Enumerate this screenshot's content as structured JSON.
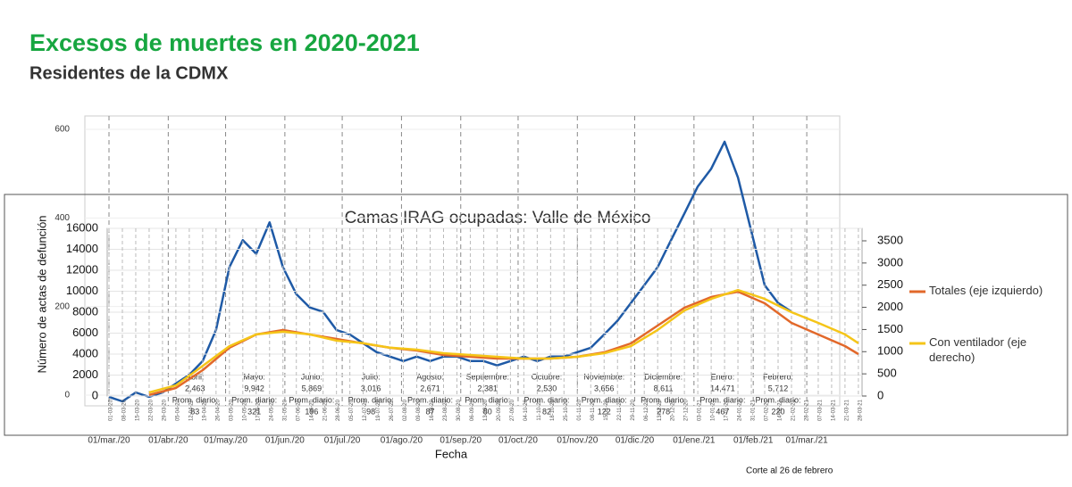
{
  "chart_data": [
    {
      "type": "line",
      "title": "Excesos de muertes en 2020-2021",
      "subtitle": "Residentes de la CDMX",
      "ylabel": "Número de actas de defunción",
      "xlabel": "Fecha",
      "footnote": "Corte al 26 de febrero",
      "ylim": [
        0,
        600
      ],
      "yticks": [
        0,
        200,
        400,
        600
      ],
      "grid": true,
      "xticks": [
        {
          "value": "01-03-20",
          "label": "01/mar./20"
        },
        {
          "value": "01-04-20",
          "label": "01/abr./20"
        },
        {
          "value": "01-05-20",
          "label": "01/may./20"
        },
        {
          "value": "01-06-20",
          "label": "01/jun./20"
        },
        {
          "value": "01-07-20",
          "label": "01/jul./20"
        },
        {
          "value": "01-08-20",
          "label": "01/ago./20"
        },
        {
          "value": "01-09-20",
          "label": "01/sep./20"
        },
        {
          "value": "01-10-20",
          "label": "01/oct./20"
        },
        {
          "value": "01-11-20",
          "label": "01/nov./20"
        },
        {
          "value": "01-12-20",
          "label": "01/dic./20"
        },
        {
          "value": "01-01-21",
          "label": "01/ene./21"
        },
        {
          "value": "01-02-21",
          "label": "01/feb./21"
        },
        {
          "value": "01-03-21",
          "label": "01/mar./21"
        }
      ],
      "annotations": [
        {
          "month": "Abril:",
          "total": "2,463",
          "avg_label": "Prom. diario:",
          "avg": "83",
          "x": "15-04-20"
        },
        {
          "month": "Mayo:",
          "total": "9,942",
          "avg_label": "Prom. diario:",
          "avg": "321",
          "x": "16-05-20"
        },
        {
          "month": "Junio:",
          "total": "5,869",
          "avg_label": "Prom. diario:",
          "avg": "196",
          "x": "15-06-20"
        },
        {
          "month": "Julio:",
          "total": "3,016",
          "avg_label": "Prom. diario:",
          "avg": "98",
          "x": "16-07-20"
        },
        {
          "month": "Agosto:",
          "total": "2,671",
          "avg_label": "Prom. diario:",
          "avg": "87",
          "x": "16-08-20"
        },
        {
          "month": "Septiembre:",
          "total": "2,381",
          "avg_label": "Prom. diario:",
          "avg": "80",
          "x": "15-09-20"
        },
        {
          "month": "Octubre:",
          "total": "2,530",
          "avg_label": "Prom. diario:",
          "avg": "82",
          "x": "16-10-20"
        },
        {
          "month": "Noviembre:",
          "total": "3,656",
          "avg_label": "Prom. diario:",
          "avg": "122",
          "x": "15-11-20"
        },
        {
          "month": "Diciembre:",
          "total": "8,611",
          "avg_label": "Prom. diario:",
          "avg": "278",
          "x": "16-12-20"
        },
        {
          "month": "Enero:",
          "total": "14,471",
          "avg_label": "Prom. diario:",
          "avg": "467",
          "x": "16-01-21"
        },
        {
          "month": "Febrero:",
          "total": "5,712",
          "avg_label": "Prom. diario:",
          "avg": "220",
          "x": "14-02-21"
        }
      ],
      "series": [
        {
          "color": "#1f5aa6",
          "x": [
            "01-03-20",
            "08-03-20",
            "15-03-20",
            "22-03-20",
            "29-03-20",
            "05-04-20",
            "12-04-20",
            "19-04-20",
            "26-04-20",
            "03-05-20",
            "10-05-20",
            "17-05-20",
            "24-05-20",
            "31-05-20",
            "07-06-20",
            "14-06-20",
            "21-06-20",
            "28-06-20",
            "05-07-20",
            "12-07-20",
            "19-07-20",
            "26-07-20",
            "02-08-20",
            "09-08-20",
            "16-08-20",
            "23-08-20",
            "30-08-20",
            "06-09-20",
            "13-09-20",
            "20-09-20",
            "27-09-20",
            "04-10-20",
            "11-10-20",
            "18-10-20",
            "25-10-20",
            "01-11-20",
            "08-11-20",
            "15-11-20",
            "22-11-20",
            "29-11-20",
            "06-12-20",
            "13-12-20",
            "20-12-20",
            "27-12-20",
            "03-01-21",
            "10-01-21",
            "17-01-21",
            "24-01-21",
            "31-01-21",
            "07-02-21",
            "14-02-21",
            "21-02-21"
          ],
          "values": [
            -4,
            -14,
            6,
            -4,
            6,
            26,
            46,
            77,
            147,
            289,
            350,
            319,
            390,
            289,
            228,
            198,
            188,
            147,
            137,
            117,
            97,
            87,
            77,
            87,
            77,
            87,
            87,
            77,
            77,
            67,
            77,
            87,
            77,
            87,
            87,
            97,
            107,
            137,
            168,
            208,
            248,
            289,
            350,
            410,
            471,
            511,
            572,
            491,
            370,
            248,
            208,
            188
          ]
        }
      ]
    },
    {
      "type": "line",
      "title": "Camas IRAG ocupadas: Valle de México",
      "ylim": [
        0,
        16000
      ],
      "yticks": [
        0,
        2000,
        4000,
        6000,
        8000,
        10000,
        12000,
        14000,
        16000
      ],
      "y2lim": [
        0,
        3500
      ],
      "y2ticks": [
        0,
        500,
        1000,
        1500,
        2000,
        2500,
        3000,
        3500
      ],
      "grid": true,
      "legend": "right",
      "xticks": [
        "01-03-20",
        "08-03-20",
        "15-03-20",
        "22-03-20",
        "29-03-20",
        "05-04-20",
        "12-04-20",
        "19-04-20",
        "26-04-20",
        "03-05-20",
        "10-05-20",
        "17-05-20",
        "24-05-20",
        "31-05-20",
        "07-06-20",
        "14-06-20",
        "21-06-20",
        "28-06-20",
        "05-07-20",
        "12-07-20",
        "19-07-20",
        "26-07-20",
        "02-08-20",
        "09-08-20",
        "16-08-20",
        "23-08-20",
        "30-08-20",
        "06-09-20",
        "13-09-20",
        "20-09-20",
        "27-09-20",
        "04-10-20",
        "11-10-20",
        "18-10-20",
        "25-10-20",
        "01-11-20",
        "08-11-20",
        "15-11-20",
        "22-11-20",
        "29-11-20",
        "06-12-20",
        "13-12-20",
        "20-12-20",
        "27-12-20",
        "03-01-21",
        "10-01-21",
        "17-01-21",
        "24-01-21",
        "31-01-21",
        "07-02-21",
        "14-02-21",
        "21-02-21",
        "28-02-21",
        "07-03-21",
        "14-03-21",
        "21-03-21",
        "28-03-21"
      ],
      "series": [
        {
          "name": "Totales (eje izquierdo)",
          "color": "#e2682a",
          "x": [
            "22-03-20",
            "05-04-20",
            "19-04-20",
            "03-05-20",
            "17-05-20",
            "31-05-20",
            "14-06-20",
            "28-06-20",
            "12-07-20",
            "26-07-20",
            "09-08-20",
            "23-08-20",
            "06-09-20",
            "20-09-20",
            "04-10-20",
            "18-10-20",
            "01-11-20",
            "15-11-20",
            "29-11-20",
            "13-12-20",
            "27-12-20",
            "10-01-21",
            "24-01-21",
            "07-02-21",
            "21-02-21",
            "07-03-21",
            "21-03-21",
            "28-03-21"
          ],
          "values": [
            100,
            766,
            2468,
            4600,
            5870,
            6300,
            5870,
            5450,
            5020,
            4600,
            4340,
            3915,
            3745,
            3575,
            3575,
            3575,
            3745,
            4170,
            5020,
            6720,
            8425,
            9450,
            9960,
            8850,
            6980,
            5870,
            4770,
            4000
          ]
        },
        {
          "name": "Con ventilador (eje derecho)",
          "color": "#f5c518",
          "axis": "y2",
          "x": [
            "22-03-20",
            "05-04-20",
            "19-04-20",
            "03-05-20",
            "17-05-20",
            "31-05-20",
            "14-06-20",
            "28-06-20",
            "12-07-20",
            "26-07-20",
            "09-08-20",
            "23-08-20",
            "06-09-20",
            "20-09-20",
            "04-10-20",
            "18-10-20",
            "01-11-20",
            "15-11-20",
            "29-11-20",
            "13-12-20",
            "27-12-20",
            "10-01-21",
            "24-01-21",
            "07-02-21",
            "21-02-21",
            "07-03-21",
            "21-03-21",
            "28-03-21"
          ],
          "values": [
            80,
            240,
            680,
            1125,
            1390,
            1450,
            1390,
            1250,
            1190,
            1090,
            1045,
            965,
            925,
            885,
            845,
            845,
            885,
            965,
            1125,
            1490,
            1930,
            2190,
            2390,
            2190,
            1890,
            1650,
            1390,
            1190
          ]
        }
      ]
    }
  ]
}
